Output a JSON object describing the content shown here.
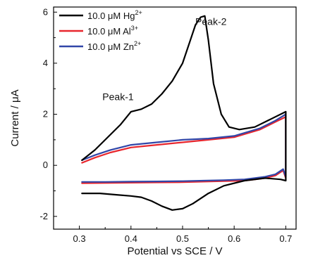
{
  "chart_data": {
    "type": "line",
    "xlabel": "Potential vs SCE / V",
    "ylabel": "Current / μA",
    "xlim": [
      0.25,
      0.72
    ],
    "ylim": [
      -2.5,
      6.2
    ],
    "xticks": [
      0.3,
      0.4,
      0.5,
      0.6,
      0.7
    ],
    "yticks": [
      -2,
      0,
      2,
      4,
      6
    ],
    "grid": false,
    "legend_position": "top-left",
    "annotations": [
      {
        "text": "Peak-1",
        "x": 0.375,
        "y": 2.55
      },
      {
        "text": "Peak-2",
        "x": 0.555,
        "y": 5.5
      }
    ],
    "series": [
      {
        "name_prefix": "10.0 μM Hg",
        "name_sup": "2+",
        "color": "#000000",
        "x": [
          0.305,
          0.33,
          0.36,
          0.38,
          0.4,
          0.42,
          0.44,
          0.46,
          0.48,
          0.5,
          0.515,
          0.525,
          0.535,
          0.543,
          0.55,
          0.56,
          0.575,
          0.59,
          0.61,
          0.64,
          0.67,
          0.7,
          0.7,
          0.69,
          0.66,
          0.62,
          0.58,
          0.55,
          0.52,
          0.5,
          0.48,
          0.46,
          0.44,
          0.42,
          0.4,
          0.37,
          0.34,
          0.305
        ],
        "y": [
          0.2,
          0.6,
          1.2,
          1.6,
          2.1,
          2.2,
          2.4,
          2.8,
          3.3,
          4.0,
          4.9,
          5.5,
          5.8,
          5.85,
          4.9,
          3.2,
          2.0,
          1.5,
          1.4,
          1.5,
          1.8,
          2.1,
          -0.6,
          -0.55,
          -0.5,
          -0.6,
          -0.8,
          -1.1,
          -1.5,
          -1.7,
          -1.75,
          -1.6,
          -1.4,
          -1.25,
          -1.2,
          -1.15,
          -1.1,
          -1.1
        ]
      },
      {
        "name_prefix": "10.0 μM Al",
        "name_sup": "3+",
        "color": "#e8262d",
        "x": [
          0.305,
          0.33,
          0.36,
          0.4,
          0.45,
          0.5,
          0.55,
          0.6,
          0.65,
          0.68,
          0.7,
          0.7,
          0.695,
          0.68,
          0.66,
          0.62,
          0.58,
          0.54,
          0.5,
          0.45,
          0.4,
          0.35,
          0.305
        ],
        "y": [
          0.1,
          0.3,
          0.5,
          0.7,
          0.8,
          0.9,
          1.0,
          1.1,
          1.4,
          1.7,
          1.9,
          -0.5,
          -0.2,
          -0.4,
          -0.5,
          -0.6,
          -0.62,
          -0.64,
          -0.66,
          -0.67,
          -0.68,
          -0.69,
          -0.7
        ]
      },
      {
        "name_prefix": "10.0 μM Zn",
        "name_sup": "2+",
        "color": "#3146a8",
        "x": [
          0.305,
          0.33,
          0.36,
          0.4,
          0.45,
          0.5,
          0.55,
          0.6,
          0.65,
          0.68,
          0.7,
          0.7,
          0.695,
          0.68,
          0.66,
          0.62,
          0.58,
          0.54,
          0.5,
          0.45,
          0.4,
          0.35,
          0.305
        ],
        "y": [
          0.2,
          0.4,
          0.6,
          0.8,
          0.9,
          1.0,
          1.05,
          1.15,
          1.45,
          1.75,
          2.0,
          -0.45,
          -0.15,
          -0.35,
          -0.45,
          -0.55,
          -0.58,
          -0.6,
          -0.62,
          -0.63,
          -0.64,
          -0.65,
          -0.65
        ]
      }
    ]
  }
}
